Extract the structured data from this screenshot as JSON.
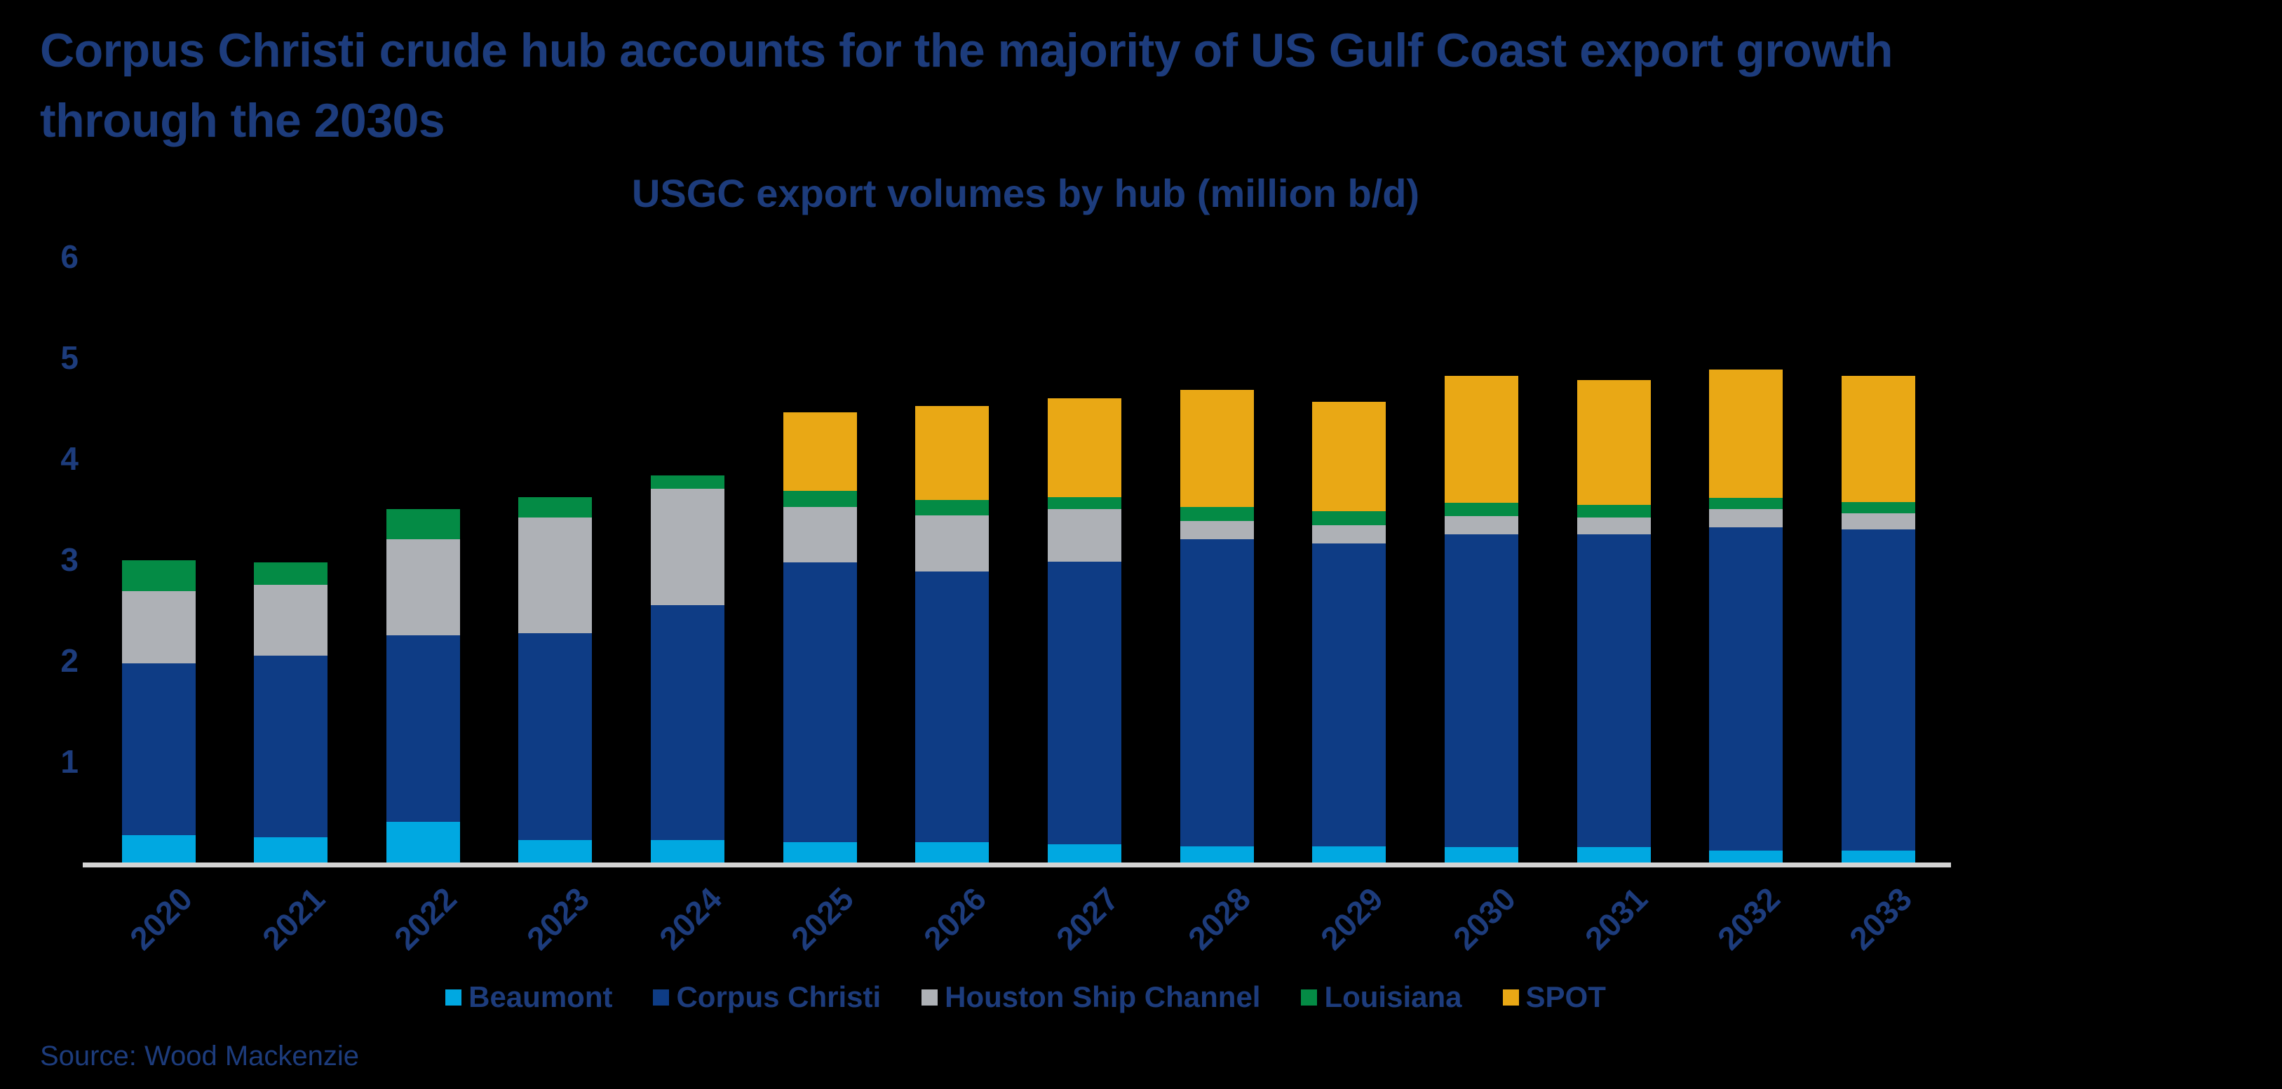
{
  "title": {
    "line1": "Corpus Christi crude hub accounts for the majority of US Gulf Coast export growth",
    "line2": "through the 2030s"
  },
  "subtitle": "USGC export volumes by hub (million b/d)",
  "source": "Source: Wood Mackenzie",
  "colors": {
    "background": "#000000",
    "text_navy": "#1d3c7c",
    "axis_line": "#d4d4d4",
    "beaumont": "#00a8e1",
    "corpus_christi": "#0e3c85",
    "houston_ship_channel": "#aeb1b6",
    "louisiana": "#048b45",
    "spot": "#e9a815"
  },
  "chart_data": {
    "type": "bar",
    "stacked": true,
    "title": "USGC export volumes by hub (million b/d)",
    "xlabel": "",
    "ylabel": "",
    "ylim": [
      0,
      6
    ],
    "y_ticks": [
      1,
      2,
      3,
      4,
      5,
      6
    ],
    "grid": false,
    "legend_position": "bottom",
    "categories": [
      "2020",
      "2021",
      "2022",
      "2023",
      "2024",
      "2025",
      "2026",
      "2027",
      "2028",
      "2029",
      "2030",
      "2031",
      "2032",
      "2033"
    ],
    "series": [
      {
        "name": "Beaumont",
        "color": "#00a8e1",
        "values": [
          0.27,
          0.25,
          0.4,
          0.22,
          0.22,
          0.2,
          0.2,
          0.18,
          0.16,
          0.16,
          0.15,
          0.15,
          0.12,
          0.12
        ]
      },
      {
        "name": "Corpus Christi",
        "color": "#0e3c85",
        "values": [
          1.7,
          1.8,
          1.85,
          2.05,
          2.33,
          2.77,
          2.68,
          2.8,
          3.04,
          3.0,
          3.1,
          3.1,
          3.2,
          3.18
        ]
      },
      {
        "name": "Houston Ship Channel",
        "color": "#aeb1b6",
        "values": [
          0.72,
          0.7,
          0.95,
          1.15,
          1.15,
          0.55,
          0.56,
          0.52,
          0.18,
          0.18,
          0.18,
          0.17,
          0.18,
          0.16
        ]
      },
      {
        "name": "Louisiana",
        "color": "#048b45",
        "values": [
          0.3,
          0.22,
          0.3,
          0.2,
          0.13,
          0.16,
          0.15,
          0.12,
          0.14,
          0.14,
          0.13,
          0.12,
          0.11,
          0.11
        ]
      },
      {
        "name": "SPOT",
        "color": "#e9a815",
        "values": [
          0.0,
          0.0,
          0.0,
          0.0,
          0.0,
          0.78,
          0.93,
          0.98,
          1.16,
          1.08,
          1.26,
          1.24,
          1.27,
          1.25
        ]
      }
    ],
    "totals": [
      2.99,
      2.97,
      3.5,
      3.62,
      3.83,
      4.46,
      4.52,
      4.6,
      4.68,
      4.56,
      4.82,
      4.78,
      4.88,
      4.82
    ]
  }
}
